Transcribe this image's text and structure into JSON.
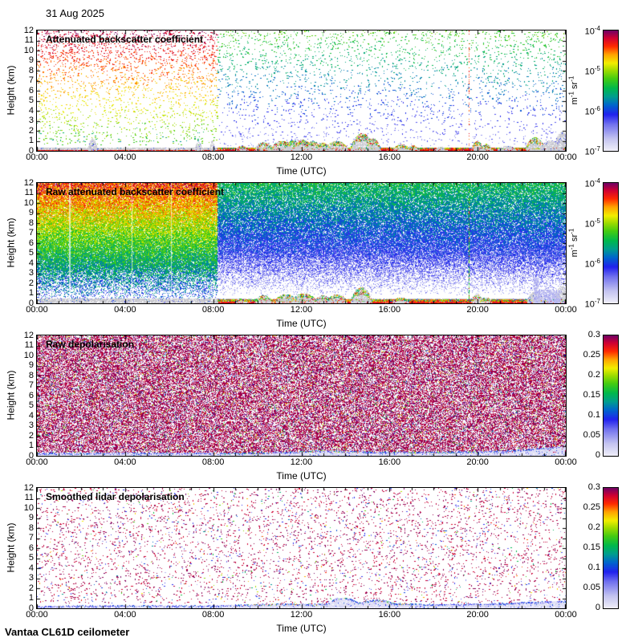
{
  "page": {
    "date": "31 Aug 2025",
    "footer": "Vantaa CL61D ceilometer",
    "background": "#ffffff"
  },
  "axes": {
    "x_label": "Time (UTC)",
    "y_label": "Height (km)",
    "x_tick_labels": [
      "00:00",
      "04:00",
      "08:00",
      "12:00",
      "16:00",
      "20:00",
      "00:00"
    ],
    "x_tick_hours": [
      0,
      4,
      8,
      12,
      16,
      20,
      24
    ],
    "x_minor_step_hours": 1,
    "y_tick_km": [
      0,
      1,
      2,
      3,
      4,
      5,
      6,
      7,
      8,
      9,
      10,
      11,
      12
    ],
    "x_range_hours": [
      0,
      24
    ],
    "y_range_km": [
      0,
      12
    ]
  },
  "colormap": {
    "stops": [
      [
        0,
        "#efeef9"
      ],
      [
        0.1,
        "#c3c3f0"
      ],
      [
        0.22,
        "#7070ee"
      ],
      [
        0.3,
        "#2222ee"
      ],
      [
        0.38,
        "#0066cc"
      ],
      [
        0.45,
        "#009e8e"
      ],
      [
        0.52,
        "#00b84d"
      ],
      [
        0.6,
        "#44cc11"
      ],
      [
        0.67,
        "#a0dc00"
      ],
      [
        0.73,
        "#f2ee00"
      ],
      [
        0.8,
        "#ffa500"
      ],
      [
        0.87,
        "#ff2a00"
      ],
      [
        0.94,
        "#cf0033"
      ],
      [
        1,
        "#750063"
      ]
    ],
    "gray_cloud": "#c8c8ce",
    "lavender": "#e6e5f6"
  },
  "chart_data": {
    "type": "heatmap",
    "x": {
      "label": "Time (UTC)",
      "range_hours": [
        0,
        24
      ]
    },
    "y": {
      "label": "Height (km)",
      "range_km": [
        0,
        12
      ]
    },
    "panels": [
      {
        "title": "Attenuated backscatter coefficient",
        "summary": "Sparse range-corrected noise speckle: red/crimson aloft before 08:00, green/blue after; gray aerosol layer below 0.4 km with strong multicolour returns and low clouds 09:00-24:00 below 2 km.",
        "colorbar": {
          "scale": "log",
          "range": [
            1e-07,
            0.0001
          ],
          "ticks": [
            {
              "m": "10",
              "s": "-4"
            },
            {
              "m": "10",
              "s": "-5"
            },
            {
              "m": "10",
              "s": "-6"
            },
            {
              "m": "10",
              "s": "-7"
            }
          ],
          "unit_parts": [
            {
              "t": "m"
            },
            {
              "s": "-1"
            },
            {
              "t": " sr"
            },
            {
              "s": "-1"
            }
          ]
        },
        "layers": [
          {
            "type": "scatter",
            "t": [
              0,
              8.2
            ],
            "h": [
              0.6,
              12
            ],
            "d": [
              0.03,
              0.11
            ],
            "v": [
              0.6,
              0.96
            ],
            "jit": 0.05
          },
          {
            "type": "scatter",
            "t": [
              0,
              8.2
            ],
            "h": [
              0.9,
              2.8
            ],
            "d": [
              0.015,
              0.01
            ],
            "v": [
              0.45,
              0.58
            ],
            "jit": 0.06
          },
          {
            "type": "scatter",
            "t": [
              8.2,
              24
            ],
            "h": [
              0.5,
              12
            ],
            "d": [
              0.025,
              0.06
            ],
            "v": [
              0.18,
              0.6
            ],
            "jit": 0.06
          },
          {
            "type": "vline",
            "t": 19.58,
            "style": "reddots"
          },
          {
            "type": "band",
            "t": [
              0,
              24
            ],
            "hTop": 0.32
          },
          {
            "type": "ground",
            "t": [
              0,
              8.2
            ],
            "hTop": 0.12
          },
          {
            "type": "ground",
            "t": [
              8.2,
              24
            ],
            "hTop": 0.3
          },
          {
            "type": "blobs",
            "items": [
              [
                2.5,
                1.25,
                0.22,
                0
              ],
              [
                7.3,
                0.9,
                0.18,
                0
              ],
              [
                7.95,
                1.05,
                0.12,
                0
              ],
              [
                9.3,
                0.5,
                0.3,
                1
              ],
              [
                10.3,
                0.85,
                0.45,
                1
              ],
              [
                11.1,
                1.0,
                0.5,
                1
              ],
              [
                11.6,
                1.05,
                0.45,
                1
              ],
              [
                12.05,
                1.1,
                0.5,
                1
              ],
              [
                12.5,
                0.95,
                0.45,
                1
              ],
              [
                12.95,
                0.8,
                0.4,
                1
              ],
              [
                13.6,
                1.0,
                0.55,
                1
              ],
              [
                14.75,
                1.75,
                0.55,
                1
              ],
              [
                15.25,
                1.25,
                0.35,
                1
              ],
              [
                16.55,
                0.65,
                0.4,
                1
              ],
              [
                17.05,
                0.55,
                0.3,
                1
              ],
              [
                18.3,
                0.4,
                0.3,
                0
              ],
              [
                19.95,
                0.95,
                0.3,
                1
              ],
              [
                20.35,
                0.7,
                0.3,
                1
              ],
              [
                21.3,
                0.5,
                0.45,
                0
              ],
              [
                22.6,
                1.35,
                0.45,
                1
              ],
              [
                23.3,
                1.05,
                0.45,
                0
              ],
              [
                23.8,
                1.9,
                0.4,
                0
              ]
            ]
          }
        ]
      },
      {
        "title": "Raw attenuated backscatter coefficient",
        "summary": "Dense raw-signal noise: orange/yellow/green field 00:00-08:00, blue/green field 08:00-24:00 fading to white below ~2 km; bright red/yellow boundary-layer returns after 08:00; faint vertical gaps near 01:30 and a green/red profile line near 19:35.",
        "colorbar": {
          "scale": "log",
          "range": [
            1e-07,
            0.0001
          ],
          "ticks": [
            {
              "m": "10",
              "s": "-4"
            },
            {
              "m": "10",
              "s": "-5"
            },
            {
              "m": "10",
              "s": "-6"
            },
            {
              "m": "10",
              "s": "-7"
            }
          ],
          "unit_parts": [
            {
              "t": "m"
            },
            {
              "s": "-1"
            },
            {
              "t": " sr"
            },
            {
              "s": "-1"
            }
          ]
        },
        "layers": [
          {
            "type": "fill",
            "t": [
              0,
              8.2
            ],
            "h": [
              0.3,
              12
            ],
            "p": [
              0.1,
              0.92
            ],
            "hRamp": 3.8,
            "v": [
              0.3,
              0.88
            ],
            "jit": 0.13
          },
          {
            "type": "fill",
            "t": [
              8.2,
              24
            ],
            "h": [
              0.8,
              12
            ],
            "p": [
              0.05,
              0.85
            ],
            "hRamp": 5.0,
            "v": [
              0.1,
              0.52
            ],
            "jit": 0.1
          },
          {
            "type": "band",
            "t": [
              0,
              24
            ],
            "hTop": 0.5
          },
          {
            "type": "ground",
            "t": [
              8.2,
              24
            ],
            "hTop": 0.38
          },
          {
            "type": "blobs",
            "items": [
              [
                9.3,
                0.5,
                0.3,
                1
              ],
              [
                10.3,
                0.8,
                0.45,
                1
              ],
              [
                11.3,
                0.9,
                0.6,
                1
              ],
              [
                12.1,
                1.0,
                0.6,
                1
              ],
              [
                12.95,
                0.8,
                0.4,
                1
              ],
              [
                13.6,
                0.9,
                0.5,
                1
              ],
              [
                14.7,
                1.6,
                0.5,
                1
              ],
              [
                16.5,
                0.6,
                0.4,
                1
              ],
              [
                19.95,
                0.9,
                0.3,
                1
              ],
              [
                20.35,
                0.6,
                0.3,
                1
              ],
              [
                22.6,
                1.2,
                0.4,
                0
              ],
              [
                23.8,
                1.7,
                0.4,
                0
              ]
            ]
          },
          {
            "type": "lavcol",
            "items": [
              [
                22.65,
                2.6,
                0.12
              ],
              [
                23.05,
                1.4,
                0.3
              ],
              [
                23.5,
                1.3,
                0.25
              ]
            ]
          },
          {
            "type": "vline",
            "t": 19.58,
            "style": "greenline"
          },
          {
            "type": "streak",
            "t": 1.45,
            "w": 2
          },
          {
            "type": "streak",
            "t": 4.3,
            "w": 1
          },
          {
            "type": "streak",
            "t": 6.1,
            "w": 1
          }
        ]
      },
      {
        "title": "Raw depolarisation",
        "summary": "Uniform dense purple depolarisation noise (values near 0.3) with scattered rainbow speckle; low-depolarisation lavender layer below ~0.5 km thickening after 21:00.",
        "colorbar": {
          "scale": "linear",
          "range": [
            0,
            0.3
          ],
          "ticks": [
            {
              "m": "0.3"
            },
            {
              "m": "0.25"
            },
            {
              "m": "0.2"
            },
            {
              "m": "0.15"
            },
            {
              "m": "0.1"
            },
            {
              "m": "0.05"
            },
            {
              "m": "0"
            }
          ],
          "unit_parts": []
        },
        "layers": [
          {
            "type": "depol",
            "t": [
              0,
              24
            ],
            "h": [
              0.35,
              12
            ],
            "d": 1.0,
            "purple": 0.48,
            "light": 0.14,
            "colorful": 0.08
          },
          {
            "type": "lavband",
            "profile": [
              [
                0,
                0.28
              ],
              [
                6,
                0.3
              ],
              [
                10,
                0.32
              ],
              [
                12,
                0.45
              ],
              [
                13,
                0.55
              ],
              [
                14,
                0.5
              ],
              [
                15,
                0.42
              ],
              [
                17,
                0.38
              ],
              [
                19,
                0.42
              ],
              [
                20.5,
                0.48
              ],
              [
                22,
                0.6
              ],
              [
                23,
                0.8
              ],
              [
                24,
                0.95
              ]
            ],
            "edgeColorful": [
              8,
              20
            ]
          }
        ]
      },
      {
        "title": "Smoothed lidar depolarisation",
        "summary": "Sparse purple speckle over white; lavender low-depolarisation aerosol layer below ~0.5 km with embedded blue/green/red points and raised lobes near 13:30-16:00.",
        "colorbar": {
          "scale": "linear",
          "range": [
            0,
            0.3
          ],
          "ticks": [
            {
              "m": "0.3"
            },
            {
              "m": "0.25"
            },
            {
              "m": "0.2"
            },
            {
              "m": "0.15"
            },
            {
              "m": "0.1"
            },
            {
              "m": "0.05"
            },
            {
              "m": "0"
            }
          ],
          "unit_parts": []
        },
        "layers": [
          {
            "type": "depolscatter",
            "t": [
              0,
              24
            ],
            "h": [
              0.5,
              12
            ],
            "d": 0.05,
            "purple": 0.8,
            "colorful": 0.12
          },
          {
            "type": "lavband",
            "profile": [
              [
                0,
                0.22
              ],
              [
                2,
                0.28
              ],
              [
                5,
                0.3
              ],
              [
                8,
                0.28
              ],
              [
                9.5,
                0.38
              ],
              [
                11,
                0.48
              ],
              [
                12.3,
                0.42
              ],
              [
                13.2,
                0.5
              ],
              [
                13.6,
                1.05
              ],
              [
                14.2,
                1.0
              ],
              [
                14.6,
                0.55
              ],
              [
                15.2,
                0.85
              ],
              [
                15.8,
                0.78
              ],
              [
                16.3,
                0.5
              ],
              [
                18,
                0.4
              ],
              [
                20,
                0.45
              ],
              [
                21.5,
                0.55
              ],
              [
                23,
                0.7
              ],
              [
                24,
                0.72
              ]
            ],
            "edgeColorful": [
              9,
              17
            ]
          }
        ]
      }
    ]
  }
}
